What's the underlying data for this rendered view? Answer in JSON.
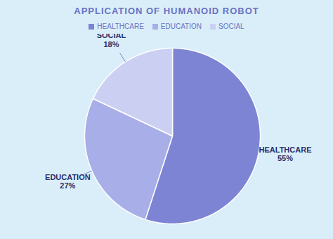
{
  "chart_data": {
    "type": "pie",
    "title": "APPLICATION OF HUMANOID ROBOT",
    "categories": [
      "HEALTHCARE",
      "EDUCATION",
      "SOCIAL"
    ],
    "values": [
      55,
      27,
      18
    ],
    "value_labels": [
      "55%",
      "27%",
      "18%"
    ],
    "colors": [
      "#7d84d4",
      "#a8aee8",
      "#cbd0f3"
    ],
    "legend": "top",
    "data_labels": true
  }
}
